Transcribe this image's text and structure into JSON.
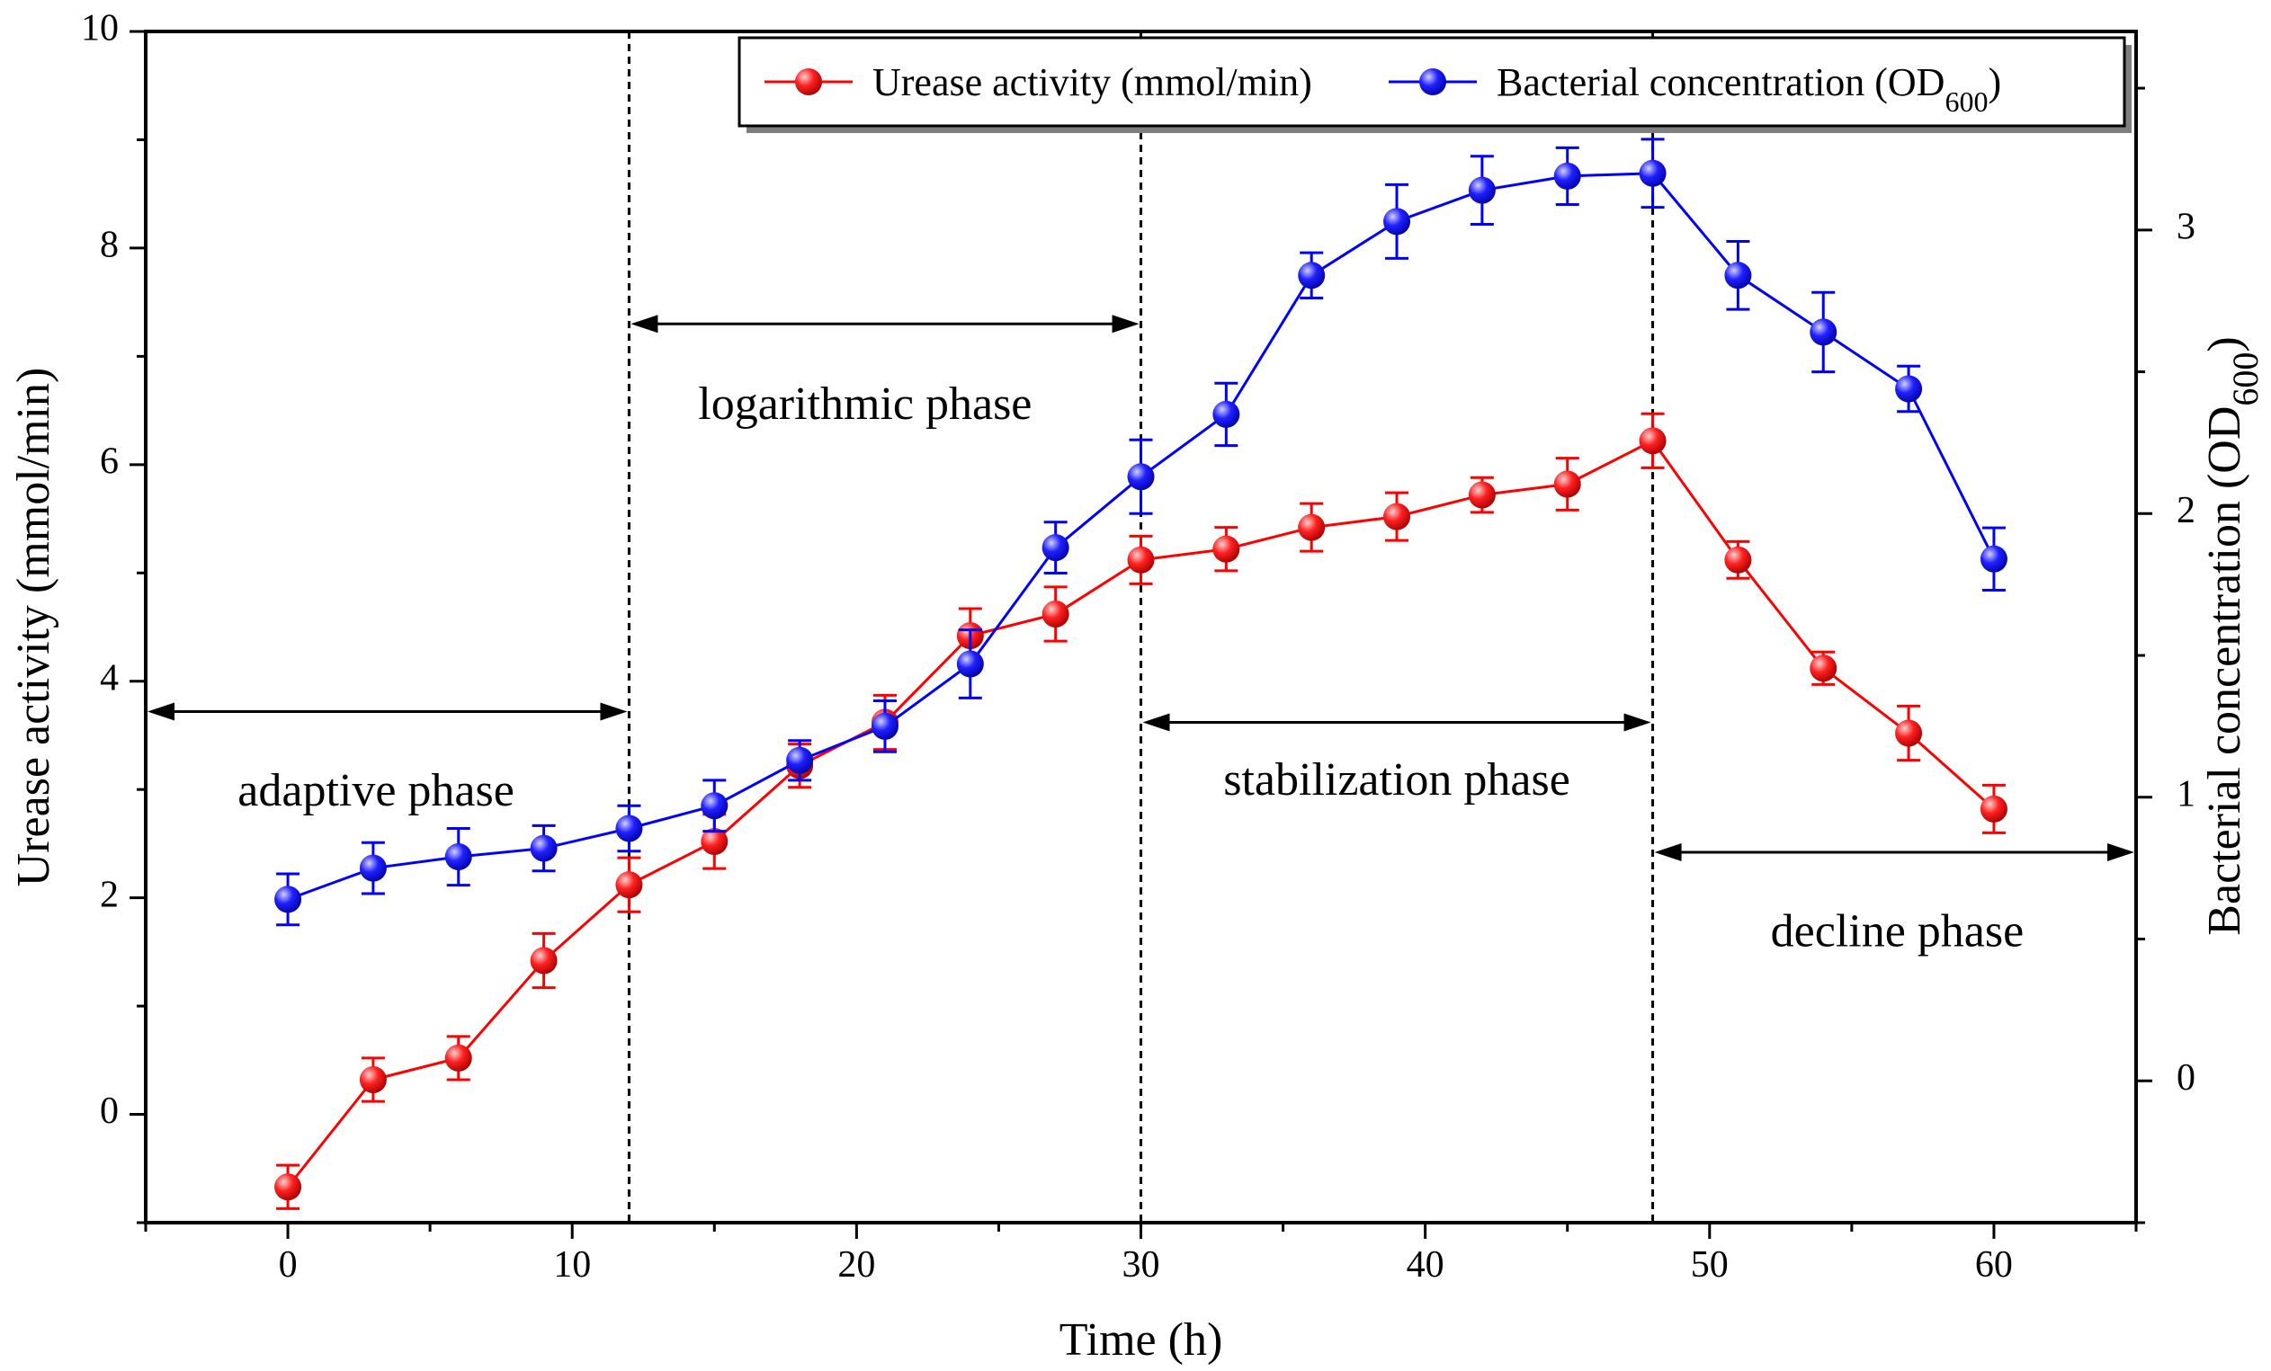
{
  "chart_data": {
    "type": "line",
    "x": [
      0,
      3,
      6,
      9,
      12,
      15,
      18,
      21,
      24,
      27,
      30,
      33,
      36,
      39,
      42,
      45,
      48,
      51,
      54,
      57,
      60
    ],
    "series": [
      {
        "name": "Urease activity (mmol/min)",
        "axis": "left",
        "color": "#ff0000",
        "values": [
          -0.67,
          0.32,
          0.52,
          1.42,
          2.12,
          2.52,
          3.22,
          3.62,
          4.42,
          4.62,
          5.12,
          5.22,
          5.42,
          5.52,
          5.72,
          5.82,
          6.22,
          5.12,
          4.12,
          3.52,
          2.82
        ],
        "errors": [
          0.2,
          0.2,
          0.2,
          0.25,
          0.25,
          0.25,
          0.2,
          0.25,
          0.25,
          0.25,
          0.22,
          0.2,
          0.22,
          0.22,
          0.16,
          0.24,
          0.25,
          0.17,
          0.15,
          0.25,
          0.22
        ]
      },
      {
        "name_main": "Bacterial concentration (OD",
        "name_sub": "600",
        "name_end": ")",
        "axis": "right",
        "color": "#0000ff",
        "values": [
          0.64,
          0.75,
          0.79,
          0.82,
          0.89,
          0.97,
          1.13,
          1.25,
          1.47,
          1.88,
          2.13,
          2.35,
          2.84,
          3.03,
          3.14,
          3.19,
          3.2,
          2.84,
          2.64,
          2.44,
          1.84
        ],
        "errors": [
          0.09,
          0.09,
          0.1,
          0.08,
          0.08,
          0.09,
          0.07,
          0.09,
          0.12,
          0.09,
          0.13,
          0.11,
          0.08,
          0.13,
          0.12,
          0.1,
          0.12,
          0.12,
          0.14,
          0.08,
          0.11
        ]
      }
    ],
    "xlabel": "Time (h)",
    "ylabel": "Urease activity (mmol/min)",
    "y2label_main": "Bacterial concentration (OD",
    "y2label_sub": "600",
    "y2label_end": ")",
    "xlim": [
      -5,
      65
    ],
    "ylim": [
      -1,
      10
    ],
    "y2lim": [
      -0.5,
      3.7
    ],
    "x_ticks": [
      0,
      10,
      20,
      30,
      40,
      50,
      60
    ],
    "y_ticks": [
      0,
      2,
      4,
      6,
      8,
      10
    ],
    "y2_ticks": [
      0,
      1,
      2,
      3
    ],
    "phase_boundaries": [
      12,
      30,
      48
    ],
    "phases": [
      {
        "label": "adaptive phase",
        "from": -5,
        "to": 12,
        "arrow_y": 3.72,
        "label_x": 3.1,
        "label_y": 2.95
      },
      {
        "label": "logarithmic phase",
        "from": 12,
        "to": 30,
        "arrow_y": 7.3,
        "label_x": 20.3,
        "label_y": 6.52
      },
      {
        "label": "stabilization phase",
        "from": 30,
        "to": 48,
        "arrow_y": 3.62,
        "label_x": 39.0,
        "label_y": 3.05
      },
      {
        "label": "decline phase",
        "from": 48,
        "to": 65,
        "arrow_y": 2.42,
        "label_x": 56.6,
        "label_y": 1.65
      }
    ],
    "legend_position": "top-right",
    "grid": false
  }
}
